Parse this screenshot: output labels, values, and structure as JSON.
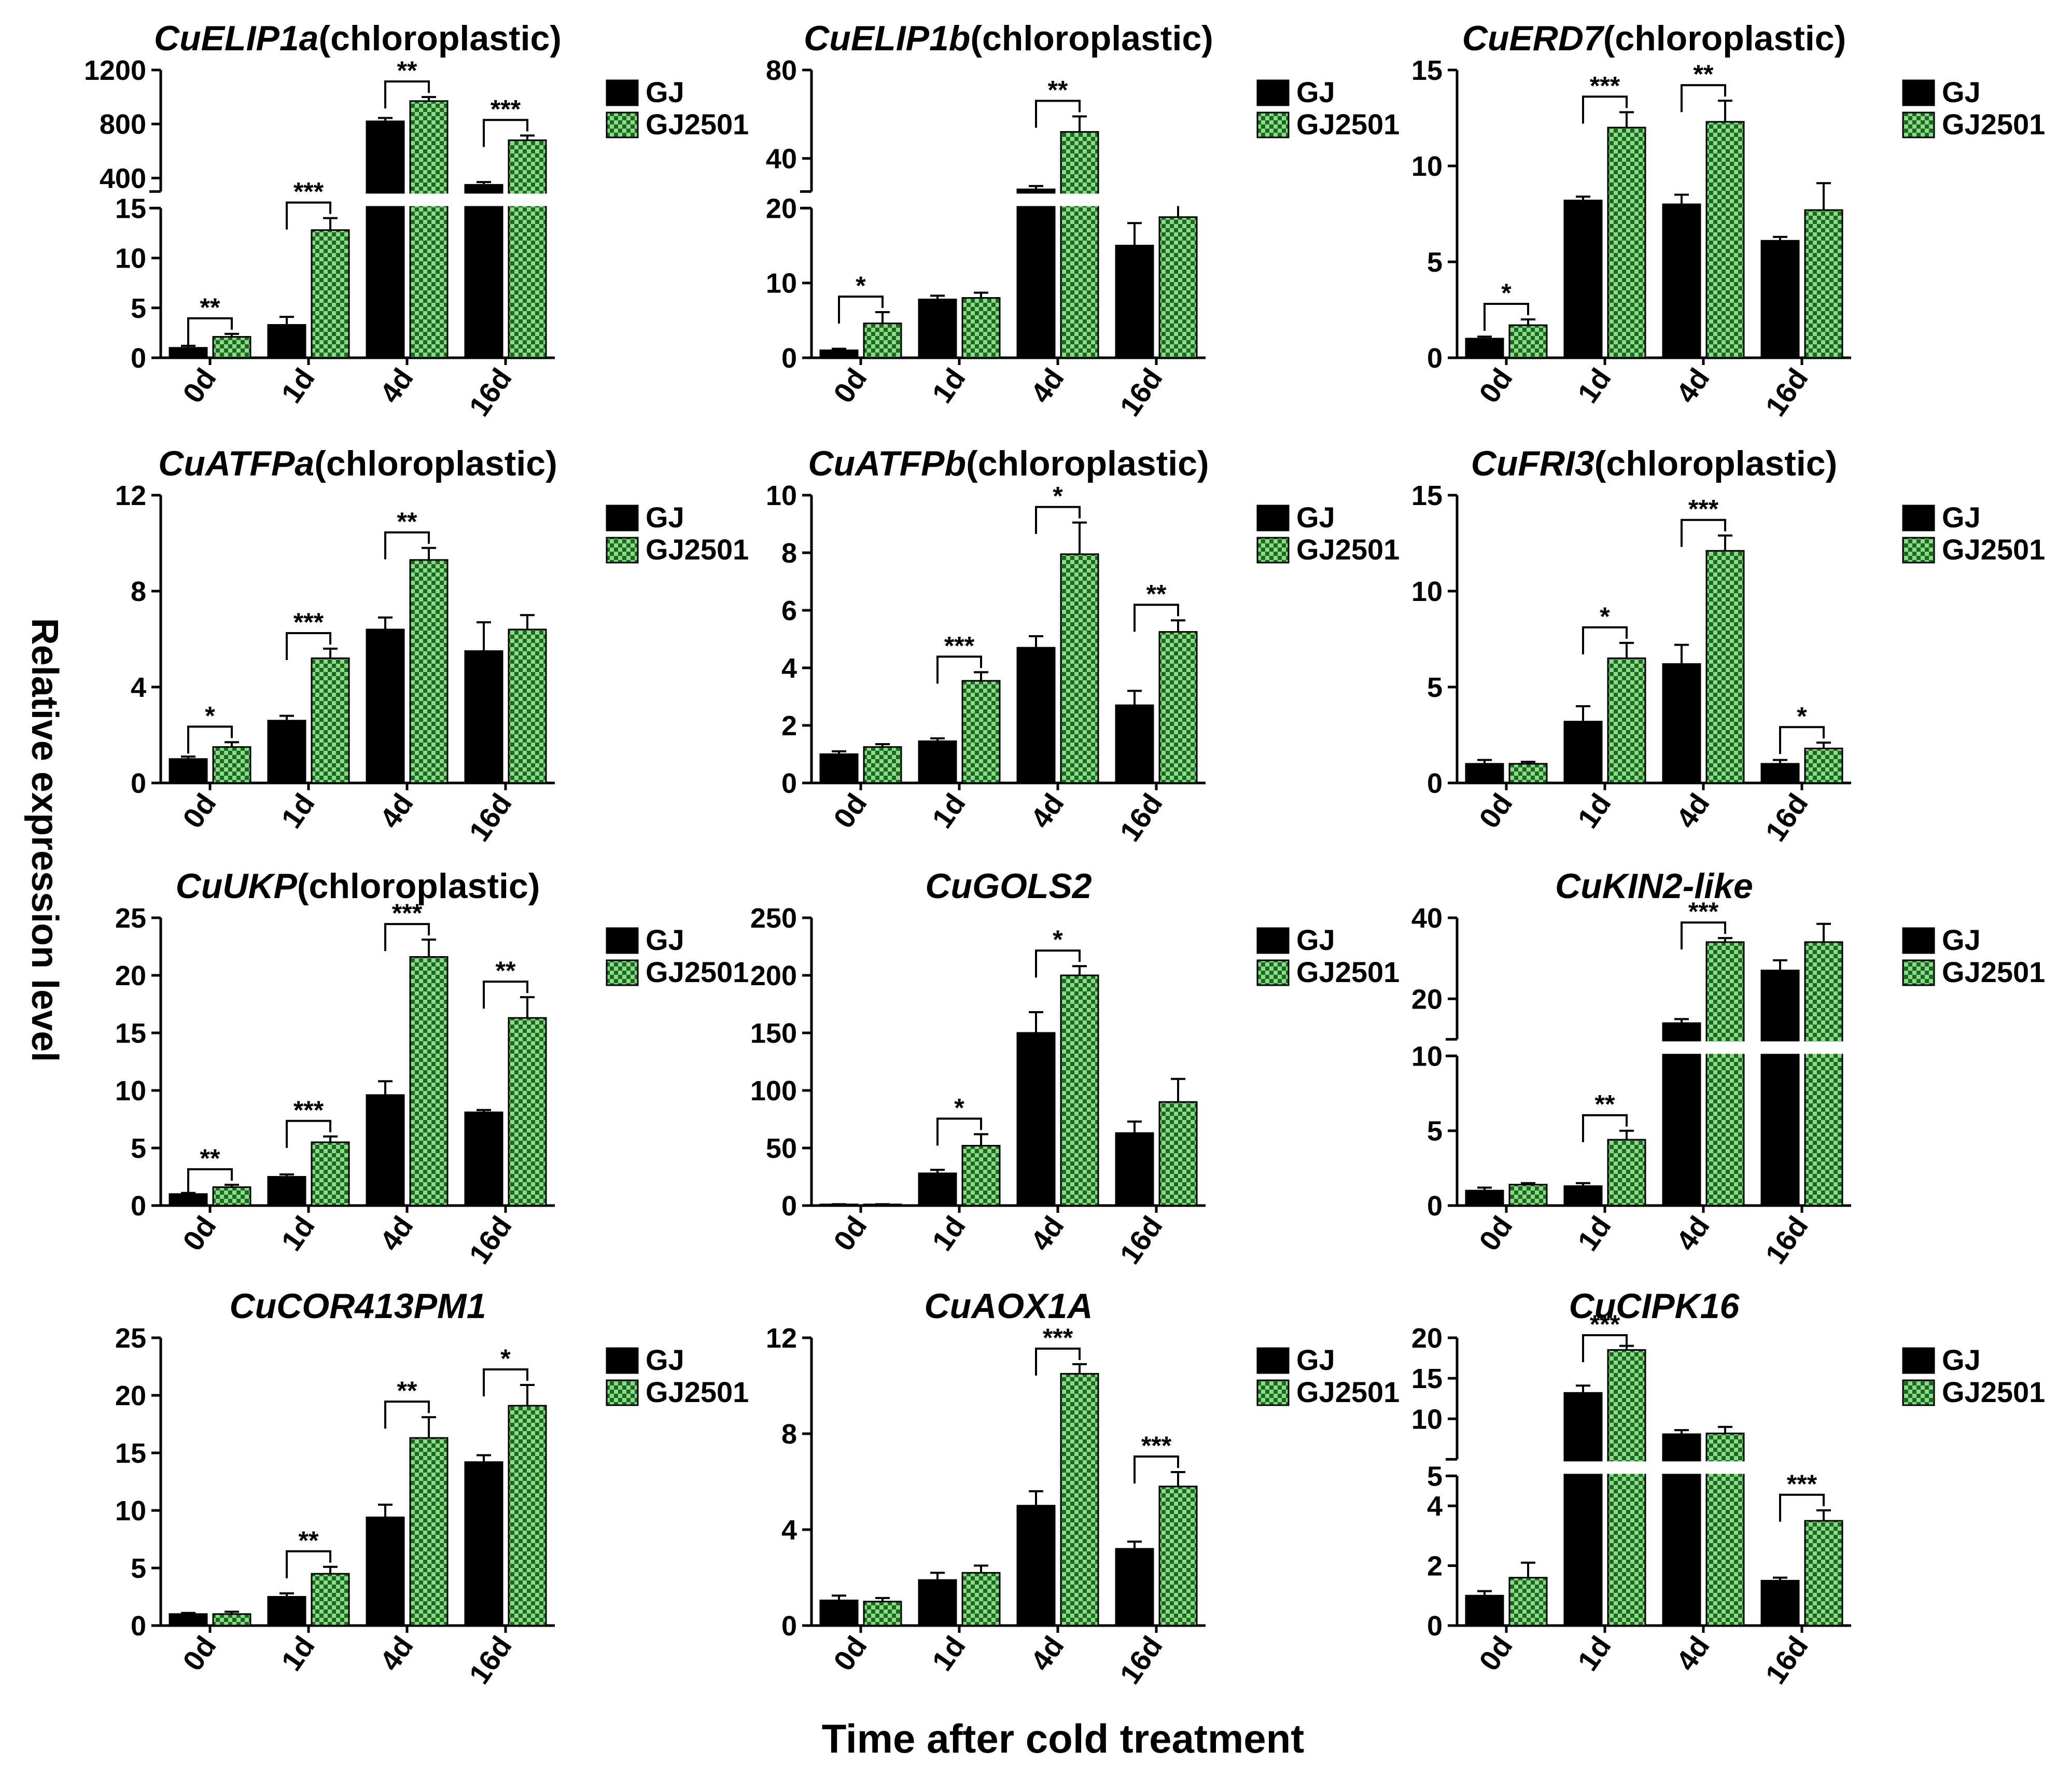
{
  "figure": {
    "ylabel": "Relative expression level",
    "xlabel": "Time after cold treatment",
    "categories": [
      "0d",
      "1d",
      "4d",
      "16d"
    ],
    "legend": [
      "GJ",
      "GJ2501"
    ],
    "colors": {
      "GJ": "#000000",
      "GJ2501_fill": "#8ed68e",
      "GJ2501_check": "#1a6b1a"
    }
  },
  "chart_data": [
    {
      "type": "bar",
      "title_gene": "CuELIP1a",
      "title_suffix": "(chloroplastic)",
      "categories": [
        "0d",
        "1d",
        "4d",
        "16d"
      ],
      "series": [
        {
          "name": "GJ",
          "values": [
            1,
            3.3,
            820,
            350
          ],
          "errors": [
            0.2,
            0.8,
            25,
            20
          ]
        },
        {
          "name": "GJ2501",
          "values": [
            2.1,
            12.8,
            970,
            680
          ],
          "errors": [
            0.3,
            1.2,
            30,
            35
          ]
        }
      ],
      "broken_axis": {
        "lower": [
          0,
          15
        ],
        "upper": [
          300,
          1200
        ]
      },
      "ticks_lower": [
        0,
        5,
        10,
        15
      ],
      "ticks_upper": [
        400,
        800,
        1200
      ],
      "sig": [
        {
          "cat": 0,
          "label": "**"
        },
        {
          "cat": 1,
          "label": "***"
        },
        {
          "cat": 2,
          "label": "**"
        },
        {
          "cat": 3,
          "label": "***"
        }
      ]
    },
    {
      "type": "bar",
      "title_gene": "CuELIP1b",
      "title_suffix": "(chloroplastic)",
      "categories": [
        "0d",
        "1d",
        "4d",
        "16d"
      ],
      "series": [
        {
          "name": "GJ",
          "values": [
            1,
            7.8,
            26,
            15
          ],
          "errors": [
            0.2,
            0.5,
            1.5,
            3
          ]
        },
        {
          "name": "GJ2501",
          "values": [
            4.6,
            8.0,
            52,
            18.8
          ],
          "errors": [
            1.5,
            0.7,
            7,
            2.5
          ]
        }
      ],
      "broken_axis": {
        "lower": [
          0,
          20
        ],
        "upper": [
          25,
          80
        ]
      },
      "ticks_lower": [
        0,
        10,
        20
      ],
      "ticks_upper": [
        40,
        80
      ],
      "sig": [
        {
          "cat": 0,
          "label": "*"
        },
        {
          "cat": 2,
          "label": "**"
        }
      ]
    },
    {
      "type": "bar",
      "title_gene": "CuERD7",
      "title_suffix": "(chloroplastic)",
      "categories": [
        "0d",
        "1d",
        "4d",
        "16d"
      ],
      "series": [
        {
          "name": "GJ",
          "values": [
            1,
            8.2,
            8.0,
            6.1
          ],
          "errors": [
            0.1,
            0.2,
            0.5,
            0.2
          ]
        },
        {
          "name": "GJ2501",
          "values": [
            1.7,
            12.0,
            12.3,
            7.7
          ],
          "errors": [
            0.3,
            0.8,
            1.1,
            1.4
          ]
        }
      ],
      "ylim": [
        0,
        15
      ],
      "ticks": [
        0,
        5,
        10,
        15
      ],
      "sig": [
        {
          "cat": 0,
          "label": "*"
        },
        {
          "cat": 1,
          "label": "***"
        },
        {
          "cat": 2,
          "label": "**"
        }
      ]
    },
    {
      "type": "bar",
      "title_gene": "CuATFPa",
      "title_suffix": "(chloroplastic)",
      "categories": [
        "0d",
        "1d",
        "4d",
        "16d"
      ],
      "series": [
        {
          "name": "GJ",
          "values": [
            1,
            2.6,
            6.4,
            5.5
          ],
          "errors": [
            0.1,
            0.2,
            0.5,
            1.2
          ]
        },
        {
          "name": "GJ2501",
          "values": [
            1.5,
            5.2,
            9.3,
            6.4
          ],
          "errors": [
            0.2,
            0.4,
            0.5,
            0.6
          ]
        }
      ],
      "ylim": [
        0,
        12
      ],
      "ticks": [
        0,
        4,
        8,
        12
      ],
      "sig": [
        {
          "cat": 0,
          "label": "*"
        },
        {
          "cat": 1,
          "label": "***"
        },
        {
          "cat": 2,
          "label": "**"
        }
      ]
    },
    {
      "type": "bar",
      "title_gene": "CuATFPb",
      "title_suffix": "(chloroplastic)",
      "categories": [
        "0d",
        "1d",
        "4d",
        "16d"
      ],
      "series": [
        {
          "name": "GJ",
          "values": [
            1,
            1.45,
            4.7,
            2.7
          ],
          "errors": [
            0.1,
            0.1,
            0.4,
            0.5
          ]
        },
        {
          "name": "GJ2501",
          "values": [
            1.25,
            3.55,
            7.95,
            5.25
          ],
          "errors": [
            0.1,
            0.3,
            1.1,
            0.4
          ]
        }
      ],
      "ylim": [
        0,
        10
      ],
      "ticks": [
        0,
        2,
        4,
        6,
        8,
        10
      ],
      "sig": [
        {
          "cat": 1,
          "label": "***"
        },
        {
          "cat": 2,
          "label": "*"
        },
        {
          "cat": 3,
          "label": "**"
        }
      ]
    },
    {
      "type": "bar",
      "title_gene": "CuFRI3",
      "title_suffix": "(chloroplastic)",
      "categories": [
        "0d",
        "1d",
        "4d",
        "16d"
      ],
      "series": [
        {
          "name": "GJ",
          "values": [
            1,
            3.2,
            6.2,
            1
          ],
          "errors": [
            0.2,
            0.8,
            1,
            0.2
          ]
        },
        {
          "name": "GJ2501",
          "values": [
            1,
            6.5,
            12.1,
            1.8
          ],
          "errors": [
            0.1,
            0.8,
            0.8,
            0.3
          ]
        }
      ],
      "ylim": [
        0,
        15
      ],
      "ticks": [
        0,
        5,
        10,
        15
      ],
      "sig": [
        {
          "cat": 1,
          "label": "*"
        },
        {
          "cat": 2,
          "label": "***"
        },
        {
          "cat": 3,
          "label": "*"
        }
      ]
    },
    {
      "type": "bar",
      "title_gene": "CuUKP",
      "title_suffix": "(chloroplastic)",
      "categories": [
        "0d",
        "1d",
        "4d",
        "16d"
      ],
      "series": [
        {
          "name": "GJ",
          "values": [
            1,
            2.5,
            9.6,
            8.1
          ],
          "errors": [
            0.1,
            0.2,
            1.2,
            0.2
          ]
        },
        {
          "name": "GJ2501",
          "values": [
            1.6,
            5.5,
            21.6,
            16.3
          ],
          "errors": [
            0.2,
            0.5,
            1.5,
            1.8
          ]
        }
      ],
      "ylim": [
        0,
        25
      ],
      "ticks": [
        0,
        5,
        10,
        15,
        20,
        25
      ],
      "sig": [
        {
          "cat": 0,
          "label": "**"
        },
        {
          "cat": 1,
          "label": "***"
        },
        {
          "cat": 2,
          "label": "***"
        },
        {
          "cat": 3,
          "label": "**"
        }
      ]
    },
    {
      "type": "bar",
      "title_gene": "CuGOLS2",
      "title_suffix": "",
      "categories": [
        "0d",
        "1d",
        "4d",
        "16d"
      ],
      "series": [
        {
          "name": "GJ",
          "values": [
            1,
            28,
            150,
            63
          ],
          "errors": [
            0.2,
            3,
            18,
            10
          ]
        },
        {
          "name": "GJ2501",
          "values": [
            1,
            52,
            200,
            90
          ],
          "errors": [
            0.2,
            10,
            8,
            20
          ]
        }
      ],
      "ylim": [
        0,
        250
      ],
      "ticks": [
        0,
        50,
        100,
        150,
        200,
        250
      ],
      "sig": [
        {
          "cat": 1,
          "label": "*"
        },
        {
          "cat": 2,
          "label": "*"
        }
      ]
    },
    {
      "type": "bar",
      "title_gene": "CuKIN2-like",
      "title_suffix": "",
      "categories": [
        "0d",
        "1d",
        "4d",
        "16d"
      ],
      "series": [
        {
          "name": "GJ",
          "values": [
            1,
            1.3,
            14,
            27
          ],
          "errors": [
            0.2,
            0.2,
            1,
            2.5
          ]
        },
        {
          "name": "GJ2501",
          "values": [
            1.4,
            4.4,
            34,
            34
          ],
          "errors": [
            0.1,
            0.6,
            1,
            4.5
          ]
        }
      ],
      "broken_axis": {
        "lower": [
          0,
          10
        ],
        "upper": [
          10,
          40
        ]
      },
      "ticks_lower": [
        0,
        5,
        10
      ],
      "ticks_upper": [
        20,
        40
      ],
      "sig": [
        {
          "cat": 1,
          "label": "**"
        },
        {
          "cat": 2,
          "label": "***"
        }
      ]
    },
    {
      "type": "bar",
      "title_gene": "CuCOR413PM1",
      "title_suffix": "",
      "categories": [
        "0d",
        "1d",
        "4d",
        "16d"
      ],
      "series": [
        {
          "name": "GJ",
          "values": [
            1,
            2.5,
            9.4,
            14.2
          ],
          "errors": [
            0.1,
            0.3,
            1.1,
            0.6
          ]
        },
        {
          "name": "GJ2501",
          "values": [
            1,
            4.5,
            16.3,
            19.1
          ],
          "errors": [
            0.2,
            0.6,
            1.8,
            1.8
          ]
        }
      ],
      "ylim": [
        0,
        25
      ],
      "ticks": [
        0,
        5,
        10,
        15,
        20,
        25
      ],
      "sig": [
        {
          "cat": 1,
          "label": "**"
        },
        {
          "cat": 2,
          "label": "**"
        },
        {
          "cat": 3,
          "label": "*"
        }
      ]
    },
    {
      "type": "bar",
      "title_gene": "CuAOX1A",
      "title_suffix": "",
      "categories": [
        "0d",
        "1d",
        "4d",
        "16d"
      ],
      "series": [
        {
          "name": "GJ",
          "values": [
            1.05,
            1.9,
            5,
            3.2
          ],
          "errors": [
            0.2,
            0.3,
            0.6,
            0.3
          ]
        },
        {
          "name": "GJ2501",
          "values": [
            1,
            2.2,
            10.5,
            5.8
          ],
          "errors": [
            0.15,
            0.3,
            0.4,
            0.6
          ]
        }
      ],
      "ylim": [
        0,
        12
      ],
      "ticks": [
        0,
        4,
        8,
        12
      ],
      "sig": [
        {
          "cat": 2,
          "label": "***"
        },
        {
          "cat": 3,
          "label": "***"
        }
      ]
    },
    {
      "type": "bar",
      "title_gene": "CuCIPK16",
      "title_suffix": "",
      "categories": [
        "0d",
        "1d",
        "4d",
        "16d"
      ],
      "series": [
        {
          "name": "GJ",
          "values": [
            1,
            13.2,
            8.1,
            1.5
          ],
          "errors": [
            0.15,
            0.9,
            0.5,
            0.1
          ]
        },
        {
          "name": "GJ2501",
          "values": [
            1.6,
            18.5,
            8.2,
            3.5
          ],
          "errors": [
            0.5,
            0.5,
            0.8,
            0.35
          ]
        }
      ],
      "broken_axis": {
        "lower": [
          0,
          5
        ],
        "upper": [
          5,
          20
        ]
      },
      "ticks_lower": [
        0,
        2,
        4
      ],
      "ticks_upper": [
        5,
        10,
        15,
        20
      ],
      "sig": [
        {
          "cat": 1,
          "label": "***"
        },
        {
          "cat": 3,
          "label": "***"
        }
      ]
    }
  ]
}
